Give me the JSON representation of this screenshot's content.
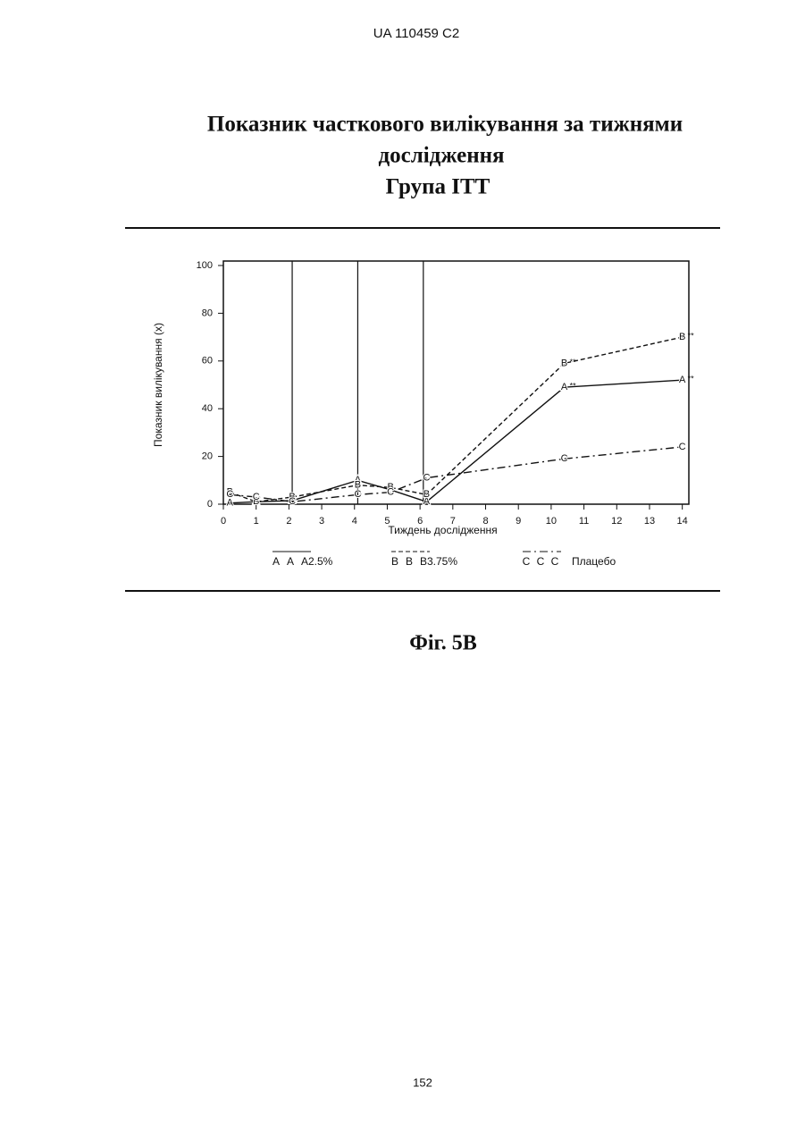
{
  "header": "UA  110459  C2",
  "title": [
    "Показник часткового вилікування за тижнями",
    "дослідження",
    "Група ITT"
  ],
  "chart_data": {
    "type": "line",
    "x_label": "Тиждень дослідження",
    "y_label": "Показник вилікування (x)",
    "xlim": [
      0,
      14.2
    ],
    "ylim": [
      0,
      100
    ],
    "xticks": [
      0,
      1,
      2,
      3,
      4,
      5,
      6,
      7,
      8,
      9,
      10,
      11,
      12,
      13,
      14
    ],
    "yticks": [
      0,
      20,
      40,
      60,
      80,
      100
    ],
    "vlines": [
      2.1,
      4.1,
      6.1
    ],
    "x": [
      0.2,
      1,
      2.1,
      4.1,
      5.1,
      6.2,
      10.4,
      14
    ],
    "series": [
      {
        "name": "2.5%",
        "marker": "A",
        "color": "#111",
        "line_style": "solid",
        "values": [
          0.5,
          1,
          1.5,
          10,
          6,
          1,
          49,
          52
        ],
        "notes": [
          null,
          null,
          null,
          null,
          null,
          null,
          "**",
          "**"
        ]
      },
      {
        "name": "3.75%",
        "marker": "B",
        "color": "#111",
        "line_style": "dashed",
        "values": [
          5,
          1,
          3,
          8,
          7,
          4,
          59,
          70
        ],
        "notes": [
          null,
          null,
          null,
          null,
          null,
          null,
          "**",
          "**"
        ]
      },
      {
        "name": "Плацебо",
        "marker": "C",
        "color": "#111",
        "line_style": "dashdot",
        "values": [
          4,
          3,
          1,
          4,
          5,
          11,
          19,
          24
        ],
        "notes": [
          null,
          null,
          null,
          null,
          null,
          null,
          null,
          null
        ]
      }
    ]
  },
  "caption": "Фіг. 5B",
  "page_number": "152"
}
